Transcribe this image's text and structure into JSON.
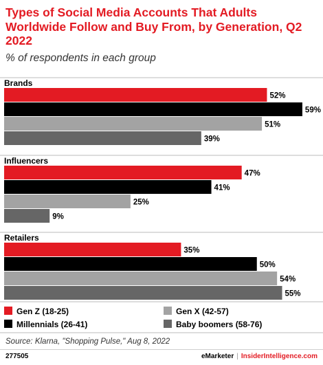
{
  "header": {
    "title": "Types of Social Media Accounts That Adults Worldwide Follow and Buy From, by Generation, Q2 2022",
    "subtitle": "% of respondents in each group"
  },
  "chart_data": {
    "type": "bar",
    "orientation": "horizontal",
    "categories": [
      "Brands",
      "Influencers",
      "Retailers"
    ],
    "series": [
      {
        "name": "Gen Z (18-25)",
        "color": "#e31b23",
        "values": [
          52,
          47,
          35
        ]
      },
      {
        "name": "Millennials (26-41)",
        "color": "#000000",
        "values": [
          59,
          41,
          50
        ]
      },
      {
        "name": "Gen X (42-57)",
        "color": "#a3a3a3",
        "values": [
          51,
          25,
          54
        ]
      },
      {
        "name": "Baby boomers (58-76)",
        "color": "#666666",
        "values": [
          39,
          9,
          55
        ]
      }
    ],
    "value_suffix": "%",
    "xlim": [
      0,
      62
    ],
    "grid": false,
    "legend_position": "bottom"
  },
  "footer": {
    "source": "Source: Klarna, \"Shopping Pulse,\" Aug 8, 2022",
    "chart_id": "277505",
    "brand_emarketer": "eMarketer",
    "brand_separator": "|",
    "brand_insider": "InsiderIntelligence.com"
  }
}
